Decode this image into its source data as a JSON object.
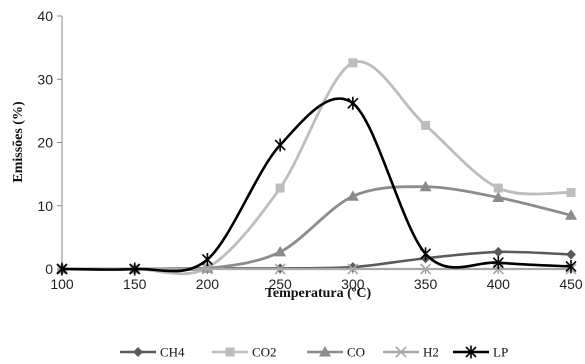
{
  "chart_data": {
    "type": "line",
    "title": "",
    "xlabel": "Temperatura (ºC)",
    "ylabel": "Emissões (%)",
    "x": [
      100,
      150,
      200,
      250,
      300,
      350,
      400,
      450
    ],
    "xlim": [
      100,
      450
    ],
    "ylim": [
      0,
      40
    ],
    "x_ticks": [
      "100",
      "150",
      "200",
      "250",
      "300",
      "350",
      "400",
      "450"
    ],
    "y_ticks": [
      "0",
      "10",
      "20",
      "30",
      "40"
    ],
    "grid": false,
    "legend_position": "bottom",
    "smooth": true,
    "series": [
      {
        "name": "CH4",
        "values": [
          0,
          0,
          0.1,
          0.1,
          0.3,
          1.7,
          2.7,
          2.3
        ],
        "color": "#5a5a5a",
        "marker": "diamond"
      },
      {
        "name": "CO2",
        "values": [
          0,
          0,
          0.2,
          12.8,
          32.6,
          22.7,
          12.8,
          12.1
        ],
        "color": "#bdbdbd",
        "marker": "square"
      },
      {
        "name": "CO",
        "values": [
          0,
          0,
          0.1,
          2.7,
          11.5,
          13.0,
          11.3,
          8.5
        ],
        "color": "#8c8c8c",
        "marker": "triangle"
      },
      {
        "name": "H2",
        "values": [
          0,
          0,
          0,
          0,
          0,
          0,
          0,
          0
        ],
        "color": "#a8a8a8",
        "marker": "x"
      },
      {
        "name": "LP",
        "values": [
          0,
          0,
          1.5,
          19.6,
          26.2,
          2.4,
          1.0,
          0.4
        ],
        "color": "#000000",
        "marker": "star"
      }
    ]
  }
}
